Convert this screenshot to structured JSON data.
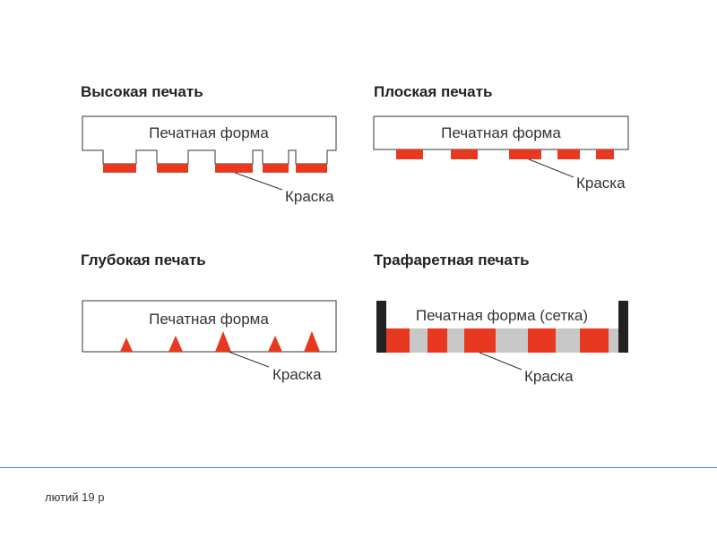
{
  "panels": {
    "letterpress": {
      "title": "Высокая печать",
      "form_label": "Печатная форма",
      "ink_label": "Краска"
    },
    "flat": {
      "title": "Плоская печать",
      "form_label": "Печатная форма",
      "ink_label": "Краска"
    },
    "gravure": {
      "title": "Глубокая печать",
      "form_label": "Печатная форма",
      "ink_label": "Краска"
    },
    "screen": {
      "title": "Трафаретная печать",
      "form_label": "Печатная форма (сетка)",
      "ink_label": "Краска"
    }
  },
  "colors": {
    "ink": "#e8381f",
    "form_stroke": "#333333",
    "mesh": "#c8c8c8",
    "frame": "#222222",
    "footer_line": "#4a86c7"
  },
  "footer": {
    "text": "лютий 19 р"
  }
}
